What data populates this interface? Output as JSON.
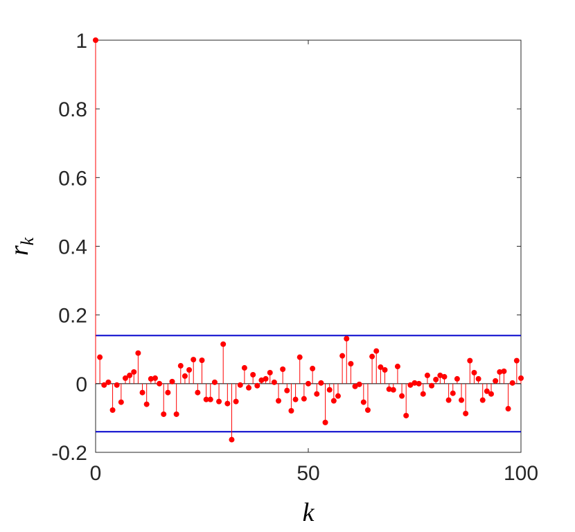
{
  "chart_data": {
    "type": "stem",
    "xlabel": "k",
    "ylabel": "r",
    "ylabel_subscript": "k",
    "x": [
      0,
      1,
      2,
      3,
      4,
      5,
      6,
      7,
      8,
      9,
      10,
      11,
      12,
      13,
      14,
      15,
      16,
      17,
      18,
      19,
      20,
      21,
      22,
      23,
      24,
      25,
      26,
      27,
      28,
      29,
      30,
      31,
      32,
      33,
      34,
      35,
      36,
      37,
      38,
      39,
      40,
      41,
      42,
      43,
      44,
      45,
      46,
      47,
      48,
      49,
      50,
      51,
      52,
      53,
      54,
      55,
      56,
      57,
      58,
      59,
      60,
      61,
      62,
      63,
      64,
      65,
      66,
      67,
      68,
      69,
      70,
      71,
      72,
      73,
      74,
      75,
      76,
      77,
      78,
      79,
      80,
      81,
      82,
      83,
      84,
      85,
      86,
      87,
      88,
      89,
      90,
      91,
      92,
      93,
      94,
      95,
      96,
      97,
      98,
      99,
      100
    ],
    "series": [
      {
        "color": "#ff0000",
        "values": [
          1,
          0.077,
          -0.004,
          0.004,
          -0.077,
          -0.004,
          -0.054,
          0.016,
          0.024,
          0.034,
          0.089,
          -0.026,
          -0.06,
          0.014,
          0.016,
          0,
          -0.089,
          -0.026,
          0.006,
          -0.089,
          0.052,
          0.022,
          0.04,
          0.07,
          -0.026,
          0.068,
          -0.046,
          -0.046,
          0.004,
          -0.052,
          0.115,
          -0.058,
          -0.163,
          -0.052,
          -0.004,
          0.046,
          -0.012,
          0.026,
          -0.006,
          0.01,
          0.014,
          0.032,
          0.004,
          -0.05,
          0.042,
          -0.02,
          -0.079,
          -0.046,
          0.077,
          -0.044,
          0,
          0.044,
          -0.03,
          0.002,
          -0.113,
          -0.018,
          -0.05,
          -0.036,
          0.081,
          0.131,
          0.058,
          -0.008,
          -0.002,
          -0.054,
          -0.077,
          0.079,
          0.095,
          0.048,
          0.04,
          -0.016,
          -0.018,
          0.05,
          -0.036,
          -0.093,
          -0.004,
          0.002,
          0,
          -0.03,
          0.024,
          -0.006,
          0.012,
          0.024,
          0.02,
          -0.048,
          -0.028,
          0.014,
          -0.048,
          -0.087,
          0.067,
          0.032,
          0.014,
          -0.048,
          -0.022,
          -0.03,
          0.008,
          0.034,
          0.036,
          -0.073,
          0.002,
          0.067,
          0.016
        ]
      }
    ],
    "bounds": [
      0.14,
      -0.14
    ],
    "bounds_color": "#0000cc",
    "xlim": [
      0,
      100
    ],
    "xticks": [
      0,
      50,
      100
    ],
    "ylim": [
      -0.2,
      1
    ],
    "yticks": [
      -0.2,
      0,
      0.2,
      0.4,
      0.6,
      0.8,
      1
    ]
  }
}
